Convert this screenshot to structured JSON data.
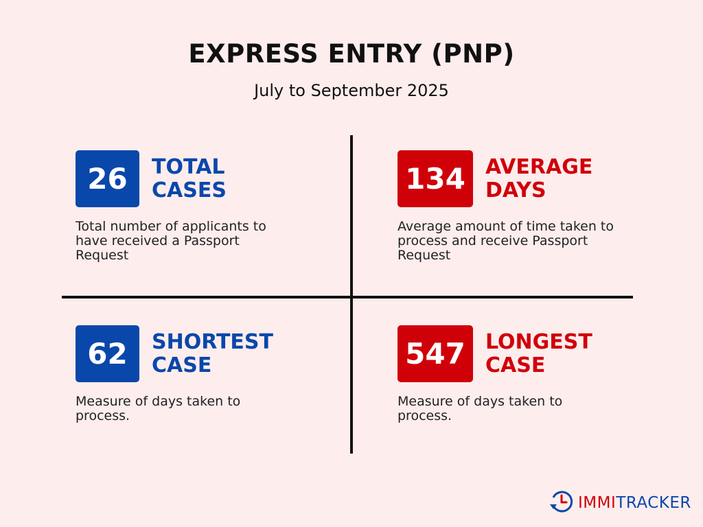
{
  "header": {
    "title": "EXPRESS ENTRY (PNP)",
    "subtitle": "July to September 2025"
  },
  "stats": {
    "total": {
      "value": "26",
      "label_line1": "TOTAL CASES",
      "description": "Total number of applicants to have received a Passport Request"
    },
    "average": {
      "value": "134",
      "label_line1": "AVERAGE",
      "label_line2": "DAYS",
      "description": "Average amount of time taken to process and receive Passport Request"
    },
    "shortest": {
      "value": "62",
      "label_line1": "SHORTEST",
      "label_line2": "CASE",
      "description": "Measure of days taken to process."
    },
    "longest": {
      "value": "547",
      "label_line1": "LONGEST",
      "label_line2": "CASE",
      "description": "Measure of days taken to process."
    }
  },
  "logo": {
    "part1": "IMMI",
    "part2": "TRACKER"
  },
  "colors": {
    "background": "#fdeded",
    "blue": "#0a47ab",
    "red": "#d00009"
  },
  "icons": {
    "logo_icon": "clock-arrow-icon"
  }
}
